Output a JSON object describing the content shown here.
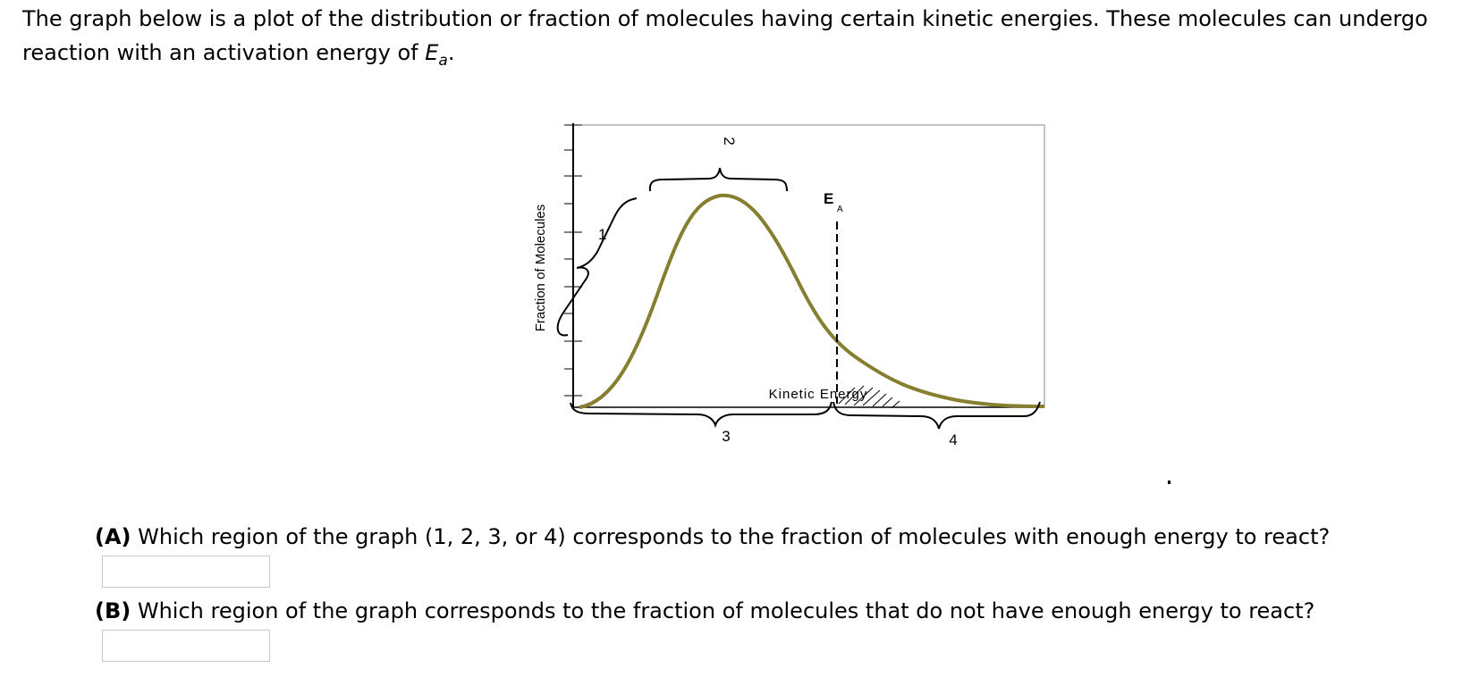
{
  "intro": {
    "text": "The graph below is a plot of the distribution or fraction of molecules having certain kinetic energies. These molecules can undergo reaction with an activation energy of ",
    "ea_symbol": "E",
    "ea_subscript": "a",
    "end": "."
  },
  "figure": {
    "ylabel": "Fraction of Molecules",
    "xlabel": "Kinetic Energy",
    "ea_label": "E",
    "ea_sub": "A",
    "region_labels": [
      "1",
      "2",
      "3",
      "4"
    ],
    "colors": {
      "curve": "#857f2f",
      "axis": "#000000",
      "frame": "#888888"
    }
  },
  "questions": {
    "a": {
      "prefix": "(A)",
      "text": " Which region of the graph (1, 2, 3, or 4) corresponds to the fraction of molecules with enough energy to react?",
      "answer": ""
    },
    "b": {
      "prefix": "(B)",
      "text": " Which region of the graph corresponds to the fraction of molecules that do not have enough energy to react?",
      "answer": ""
    }
  }
}
